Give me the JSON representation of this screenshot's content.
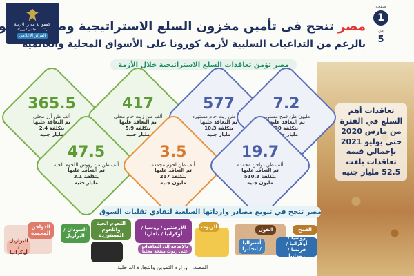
{
  "header": {
    "logo": {
      "line1": "جمهورية مصر العربية",
      "line2": "رئاسة مجلس الوزراء",
      "line3": "المركز الإعلامي"
    },
    "issue": {
      "label": "صفحة",
      "number": "1",
      "from": "من",
      "total": "5"
    },
    "title_brand": "مصر",
    "title_rest": "تنجح فى تأمين مخزون السلع الاستراتيجية وضبط الأسواق",
    "subtitle": "بالرغم من التداعيات السلبية لأزمة كورونا على الأسواق المحلية والعالمية"
  },
  "section1_banner": "مصر تؤمن تعاقدات السلع الاستراتيجية خلال الأزمة",
  "summary_text": "تعاقدات أهم السلع في الفترة من مارس 2020 حتى يوليو 2021 بإجمالي قيمة تعاقدات بلغت 52.5 مليار جنيه",
  "cards": [
    {
      "value": "365.5",
      "desc": "ألف طن أرز محلي",
      "sub1": "تم التعاقد عليها",
      "sub2": "بتكلفة 2.4",
      "sub3": "مليار جنيه"
    },
    {
      "value": "417",
      "desc": "ألف طن زيت خام محلي",
      "sub1": "تم التعاقد عليها",
      "sub2": "بتكلفة 5.9",
      "sub3": "مليار جنيه"
    },
    {
      "value": "577",
      "desc": "ألف طن زيت خام مستورد",
      "sub1": "تم التعاقد عليها",
      "sub2": "بتكلفة 10.3",
      "sub3": "مليار جنيه"
    },
    {
      "value": "7.2",
      "desc": "مليون طن قمح مستورد",
      "sub1": "تم التعاقد عليها",
      "sub2": "بتكلفة 30",
      "sub3": "مليار جنيه"
    },
    {
      "value": "47.5",
      "desc": "ألف طن من رؤوس اللحوم الحية",
      "sub1": "تم التعاقد عليها",
      "sub2": "بتكلفة 3.1",
      "sub3": "مليار جنيه"
    },
    {
      "value": "3.5",
      "desc": "ألف طن لحوم مجمدة",
      "sub1": "تم التعاقد عليها",
      "sub2": "بتكلفة 217",
      "sub3": "مليون جنيه"
    },
    {
      "value": "19.7",
      "desc": "ألف طن دواجن مجمدة",
      "sub1": "تم التعاقد عليها",
      "sub2": "بتكلفة 510.3",
      "sub3": "مليون جنيه"
    }
  ],
  "section2_banner": "مصر تنجح في تنويع مصادر وارداتها السلعية لتفادي تقلبات السوق",
  "sources": [
    {
      "title": "الدواجن المجمدة",
      "origins": "البرازيل / أوكرانيا"
    },
    {
      "title": "السودان / البرازيل",
      "origins": ""
    },
    {
      "title": "اللحوم الحية واللحوم المستوردة",
      "origins": ""
    },
    {
      "title": "الأرجنتين / روسيا / أوكرانيا / بلغاريا",
      "origins": "بالإضافة إلى التعاقدات على زيوت منتجة محلياً"
    },
    {
      "title": "الزيوت",
      "origins": ""
    },
    {
      "title": "الفول",
      "origins": "أستراليا / إنجلترا"
    },
    {
      "title": "القمح",
      "origins": "روسيا / أوكرانيا / فرنسا / رومانيا"
    }
  ],
  "source_note": "المصدر: وزارة التموين والتجارة الداخلية",
  "colors": {
    "navy": "#1f2f5c",
    "red": "#e5342f",
    "blue": "#5a6fb8",
    "green": "#7ab04c",
    "orange": "#e8913c"
  }
}
